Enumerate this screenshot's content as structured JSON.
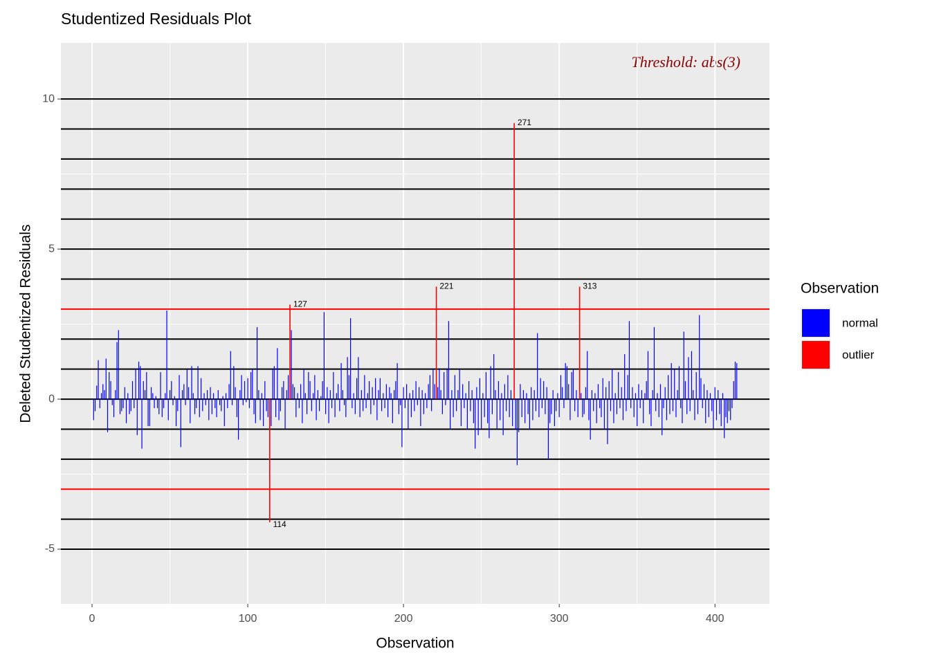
{
  "chart_data": {
    "type": "bar",
    "title": "Studentized Residuals Plot",
    "xlabel": "Observation",
    "ylabel": "Deleted Studentized Residuals",
    "annotation": "Threshold: abs(3)",
    "legend_title": "Observation",
    "legend_position": "right",
    "xlim": [
      -20,
      435
    ],
    "ylim": [
      -6.82,
      11.87
    ],
    "xticks": [
      0,
      100,
      200,
      300,
      400
    ],
    "yticks": [
      -5,
      0,
      5,
      10
    ],
    "x_minor_ticks": [
      50,
      150,
      250,
      350
    ],
    "y_minor_ticks": [
      -2.5,
      2.5,
      7.5
    ],
    "grid": true,
    "hlines": [
      -5,
      -4,
      -2,
      -1,
      0,
      1,
      2,
      4,
      5,
      6,
      7,
      8,
      9,
      10
    ],
    "hline_color": "#000000",
    "threshold_lines": [
      -3,
      3
    ],
    "threshold_color": "#ff0000",
    "series": [
      {
        "name": "normal",
        "color": "#0000ff",
        "x": [
          1,
          2,
          3,
          4,
          5,
          6,
          7,
          8,
          9,
          10,
          11,
          12,
          13,
          14,
          15,
          16,
          17,
          18,
          19,
          20,
          21,
          22,
          23,
          24,
          25,
          26,
          27,
          28,
          29,
          30,
          31,
          32,
          33,
          34,
          35,
          36,
          37,
          38,
          39,
          40,
          41,
          42,
          43,
          44,
          45,
          46,
          47,
          48,
          49,
          50,
          51,
          52,
          53,
          54,
          55,
          56,
          57,
          58,
          59,
          60,
          61,
          62,
          63,
          64,
          65,
          66,
          67,
          68,
          69,
          70,
          71,
          72,
          73,
          74,
          75,
          76,
          77,
          78,
          79,
          80,
          81,
          82,
          83,
          84,
          85,
          86,
          87,
          88,
          89,
          90,
          91,
          92,
          93,
          94,
          95,
          96,
          97,
          98,
          99,
          100,
          101,
          102,
          103,
          104,
          105,
          106,
          107,
          108,
          109,
          110,
          111,
          112,
          113,
          115,
          116,
          117,
          118,
          119,
          120,
          121,
          122,
          123,
          124,
          125,
          126,
          128,
          129,
          130,
          131,
          132,
          133,
          134,
          135,
          136,
          137,
          138,
          139,
          140,
          141,
          142,
          143,
          144,
          145,
          146,
          147,
          148,
          149,
          150,
          151,
          152,
          153,
          154,
          155,
          156,
          157,
          158,
          159,
          160,
          161,
          162,
          163,
          164,
          165,
          166,
          167,
          168,
          169,
          170,
          171,
          172,
          173,
          174,
          175,
          176,
          177,
          178,
          179,
          180,
          181,
          182,
          183,
          184,
          185,
          186,
          187,
          188,
          189,
          190,
          191,
          192,
          193,
          194,
          195,
          196,
          197,
          198,
          199,
          200,
          201,
          202,
          203,
          204,
          205,
          206,
          207,
          208,
          209,
          210,
          211,
          212,
          213,
          214,
          215,
          216,
          217,
          218,
          219,
          220,
          222,
          223,
          224,
          225,
          226,
          227,
          228,
          229,
          230,
          231,
          232,
          233,
          234,
          235,
          236,
          237,
          238,
          239,
          240,
          241,
          242,
          243,
          244,
          245,
          246,
          247,
          248,
          249,
          250,
          251,
          252,
          253,
          254,
          255,
          256,
          257,
          258,
          259,
          260,
          261,
          262,
          263,
          264,
          265,
          266,
          267,
          268,
          269,
          270,
          272,
          273,
          274,
          275,
          276,
          277,
          278,
          279,
          280,
          281,
          282,
          283,
          284,
          285,
          286,
          287,
          288,
          289,
          290,
          291,
          292,
          293,
          294,
          295,
          296,
          297,
          298,
          299,
          300,
          301,
          302,
          303,
          304,
          305,
          306,
          307,
          308,
          309,
          310,
          311,
          312,
          314,
          315,
          316,
          317,
          318,
          319,
          320,
          321,
          322,
          323,
          324,
          325,
          326,
          327,
          328,
          329,
          330,
          331,
          332,
          333,
          334,
          335,
          336,
          337,
          338,
          339,
          340,
          341,
          342,
          343,
          344,
          345,
          346,
          347,
          348,
          349,
          350,
          351,
          352,
          353,
          354,
          355,
          356,
          357,
          358,
          359,
          360,
          361,
          362,
          363,
          364,
          365,
          366,
          367,
          368,
          369,
          370,
          371,
          372,
          373,
          374,
          375,
          376,
          377,
          378,
          379,
          380,
          381,
          382,
          383,
          384,
          385,
          386,
          387,
          388,
          389,
          390,
          391,
          392,
          393,
          394,
          395,
          396,
          397,
          398,
          399,
          400,
          401,
          402,
          403,
          404,
          405,
          406,
          407,
          408,
          409,
          410,
          411,
          412,
          413,
          414
        ],
        "values": [
          -0.7,
          -0.4,
          0.45,
          1.3,
          -0.3,
          0.2,
          0.5,
          0.3,
          1.35,
          -1.1,
          0.9,
          0.6,
          -0.2,
          -0.6,
          0.3,
          1.9,
          2.3,
          -0.5,
          -0.4,
          -0.3,
          0.4,
          -0.8,
          0.2,
          -0.5,
          -0.4,
          0.6,
          -0.3,
          1.0,
          -1.2,
          1.25,
          1.1,
          -1.65,
          0.6,
          0.3,
          0.9,
          -0.9,
          -0.9,
          0.4,
          0.2,
          -0.3,
          0.1,
          -0.3,
          -0.5,
          0.9,
          -0.6,
          -0.3,
          0.2,
          2.95,
          -0.7,
          0.3,
          0.6,
          -0.2,
          0.1,
          -0.9,
          -0.4,
          0.8,
          -1.6,
          0.3,
          0.5,
          -0.2,
          1.0,
          0.4,
          -0.8,
          1.1,
          0.2,
          -0.5,
          -0.3,
          1.1,
          -0.6,
          0.7,
          -0.4,
          0.2,
          -0.2,
          0.3,
          -0.7,
          0.4,
          -0.5,
          0.2,
          -0.3,
          -0.6,
          0.3,
          -0.2,
          -0.4,
          0.1,
          -0.9,
          0.2,
          -0.3,
          0.5,
          1.6,
          -0.2,
          1.1,
          0.4,
          -0.6,
          -1.35,
          0.3,
          0.8,
          -0.2,
          0.6,
          -0.1,
          0.7,
          -0.3,
          0.9,
          1.0,
          -0.5,
          -0.8,
          2.4,
          0.3,
          -0.7,
          0.2,
          -0.9,
          0.6,
          -0.4,
          -0.6,
          -0.9,
          1.0,
          1.1,
          -0.6,
          1.7,
          -0.7,
          -0.4,
          0.4,
          0.6,
          -1.0,
          0.3,
          0.8,
          2.3,
          0.5,
          0.4,
          -0.6,
          0.2,
          -0.3,
          0.5,
          -0.8,
          1.0,
          0.2,
          -0.5,
          0.9,
          0.6,
          -0.4,
          0.2,
          0.8,
          -0.7,
          0.3,
          -0.4,
          0.1,
          0.6,
          2.9,
          -0.5,
          0.4,
          -0.8,
          0.3,
          -0.3,
          0.9,
          -0.6,
          0.2,
          0.5,
          -0.4,
          1.2,
          0.3,
          -0.2,
          -0.6,
          1.4,
          0.8,
          2.7,
          -0.3,
          0.2,
          -0.5,
          0.7,
          1.4,
          -0.6,
          0.3,
          -0.4,
          0.8,
          -0.3,
          0.2,
          0.6,
          -0.5,
          0.4,
          -0.2,
          0.7,
          -0.7,
          0.3,
          0.7,
          -0.4,
          0.2,
          -0.3,
          0.5,
          -0.6,
          0.4,
          0.2,
          -0.8,
          0.3,
          0.6,
          1.2,
          -0.5,
          -0.2,
          -1.6,
          0.4,
          -0.3,
          0.5,
          -1.0,
          0.2,
          -0.6,
          0.3,
          -0.4,
          0.6,
          -0.2,
          0.4,
          -0.9,
          0.3,
          -0.5,
          0.2,
          -0.3,
          0.5,
          0.8,
          -0.4,
          1.0,
          0.5,
          0.4,
          1.0,
          0.3,
          -0.5,
          0.9,
          -0.2,
          1.0,
          2.6,
          -1.0,
          0.3,
          -0.6,
          0.8,
          -0.4,
          0.3,
          1.0,
          -0.9,
          0.5,
          -0.3,
          0.2,
          -1.0,
          0.6,
          -0.4,
          0.3,
          -0.8,
          -1.65,
          0.4,
          -1.2,
          0.7,
          -1.0,
          0.2,
          -0.6,
          0.9,
          -0.8,
          -1.3,
          1.1,
          -0.5,
          1.5,
          0.3,
          -1.0,
          0.6,
          -0.7,
          0.2,
          -1.2,
          0.5,
          -0.4,
          0.8,
          -0.6,
          0.3,
          -0.9,
          -1.0,
          -2.2,
          -1.1,
          0.5,
          -0.6,
          0.3,
          -0.8,
          0.2,
          -0.5,
          -1.0,
          0.4,
          -0.7,
          0.3,
          -0.4,
          2.2,
          -0.6,
          0.7,
          -0.3,
          0.6,
          -0.5,
          0.4,
          -2.0,
          -0.8,
          -0.5,
          0.3,
          -0.9,
          -0.4,
          0.2,
          -0.6,
          0.8,
          0.4,
          -0.3,
          1.2,
          1.1,
          0.5,
          -0.7,
          0.9,
          1.0,
          -0.4,
          0.3,
          -0.6,
          0.2,
          -0.6,
          -0.5,
          0.4,
          1.6,
          -0.7,
          -1.35,
          0.3,
          -0.4,
          0.2,
          -0.8,
          0.5,
          -0.3,
          -0.6,
          0.7,
          -1.0,
          0.4,
          -1.5,
          0.6,
          -0.4,
          1.0,
          -0.8,
          0.2,
          -0.5,
          0.9,
          -0.3,
          0.4,
          -0.7,
          1.5,
          -0.4,
          0.8,
          2.6,
          -0.3,
          0.4,
          -0.6,
          0.2,
          -0.9,
          0.5,
          -0.3,
          0.3,
          -0.8,
          0.2,
          0.6,
          1.6,
          -0.5,
          -0.9,
          0.3,
          2.4,
          -0.4,
          0.2,
          -0.6,
          0.5,
          -1.2,
          -0.3,
          0.4,
          -0.7,
          0.8,
          -0.5,
          1.2,
          -0.4,
          1.0,
          -0.6,
          0.3,
          1.1,
          -0.3,
          -0.8,
          2.25,
          0.6,
          -0.5,
          1.4,
          -0.4,
          1.6,
          0.3,
          -0.7,
          0.9,
          -0.5,
          2.8,
          0.7,
          -0.3,
          0.5,
          -0.8,
          0.3,
          -0.6,
          0.2,
          -0.4,
          -1.0,
          0.4,
          -0.7,
          0.3,
          -0.5,
          -0.9,
          0.2,
          -1.3,
          -0.6,
          -0.8,
          -0.4,
          -0.7,
          -0.3,
          0.6,
          1.25,
          1.2
        ]
      },
      {
        "name": "outlier",
        "color": "#ff0000",
        "labeled": true,
        "x": [
          114,
          127,
          221,
          271,
          313
        ],
        "values": [
          -4.1,
          3.15,
          3.75,
          9.2,
          3.75
        ]
      }
    ]
  }
}
